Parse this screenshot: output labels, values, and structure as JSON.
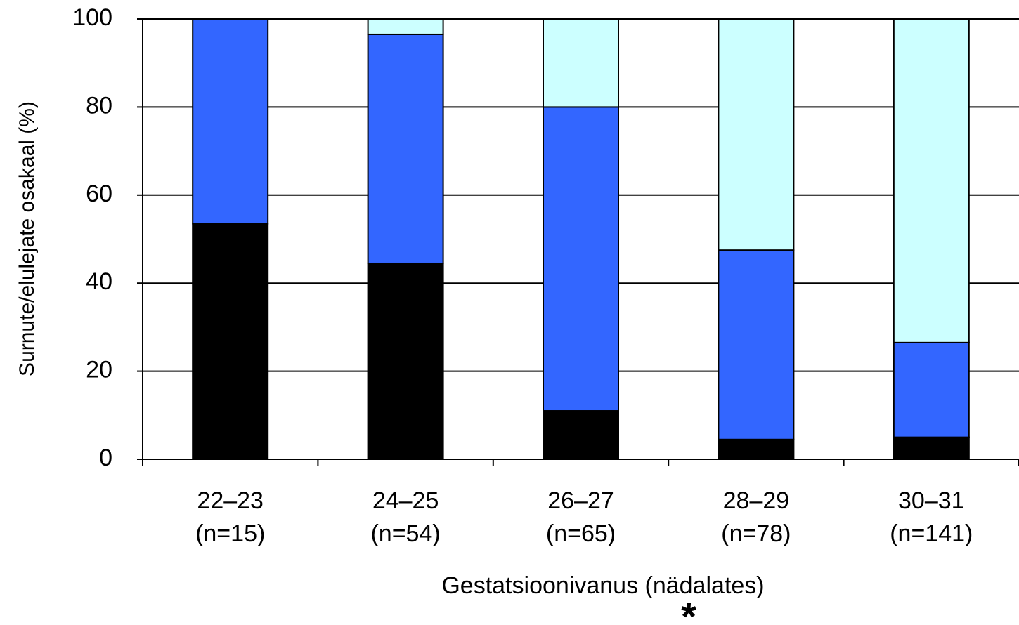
{
  "chart_data": {
    "type": "stacked_bar",
    "y_label": "Surnute/elulejate osakaal (%)",
    "x_label": "Gestatsioonivanus (nädalates)",
    "annotation": "*",
    "categories": [
      "22–23",
      "24–25",
      "26–27",
      "28–29",
      "30–31"
    ],
    "category_counts": [
      "(n=15)",
      "(n=54)",
      "(n=65)",
      "(n=78)",
      "(n=141)"
    ],
    "series": [
      {
        "color": "#000000",
        "values": [
          53.5,
          44.5,
          11,
          4.5,
          5
        ]
      },
      {
        "color": "#3366ff",
        "values": [
          46.5,
          52,
          69,
          43,
          21.5
        ]
      },
      {
        "color": "#ccffff",
        "values": [
          0,
          3.5,
          20,
          52.5,
          73.5
        ]
      }
    ],
    "ylim": [
      0,
      100
    ],
    "yticks": [
      0,
      20,
      40,
      60,
      80,
      100
    ],
    "grid": true
  }
}
